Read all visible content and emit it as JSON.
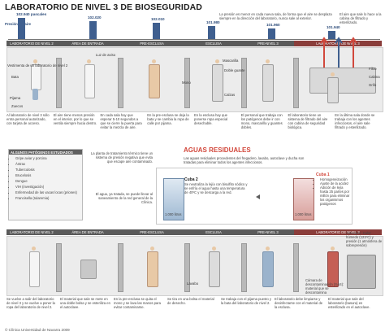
{
  "title": "LABORATORIO DE NIVEL 3 DE BIOSEGURIDAD",
  "pressure": {
    "label": "Presión del aire",
    "values": [
      "102.940 pascales",
      "102.020",
      "102.010",
      "101.980",
      "101.960",
      "101.940"
    ],
    "levels": [
      1.0,
      0.85,
      0.75,
      0.62,
      0.5,
      0.4
    ],
    "note": "La presión es menor en cada nueva sala, de forma que el aire se desplaza siempre en la dirección del laboratorio, nunca sale al exterior."
  },
  "zones_top": [
    "LABORATORIO DE NIVEL 2",
    "ÁREA DE ENTRADA",
    "PRE-ESCLUSA",
    "ESCLUSA",
    "PRE-NIVEL 3",
    "LABORATORIO DE NIVEL 3"
  ],
  "zones_bottom": [
    "LABORATORIO DE NIVEL 2",
    "ÁREA DE ENTRADA",
    "PRE-ESCLUSA",
    "ESCLUSA",
    "PRE-NIVEL 3",
    "LABORATORIO DE NIVEL 3"
  ],
  "left_labels": [
    "Vestimenta de un laboratorio de nivel 2",
    "Bata",
    "Pijama",
    "Zuecos"
  ],
  "figure_labels": [
    "Luz de aviso",
    "Mono",
    "Mascarilla",
    "Doble guante",
    "Calzas"
  ],
  "filter_labels": [
    "Filtro",
    "Cabina",
    "Grifo"
  ],
  "top_note": "El aire que sale lo hace a la cabina de filtrado y esterilizado.",
  "steps_top": [
    "Al laboratorio de nivel 3 sólo entra personal autorizado, con tarjeta de acceso.",
    "El aire tiene menos presión en el interior, por lo que se ventila siempre hacia dentro.",
    "En cada sala hay que esperar 5-10 segundos a que se cierre la puerta para evitar la mezcla de aire.",
    "En la pre-esclusa se deja la bata y se cambia la ropa de calle por pijama.",
    "En la esclusa hay que ponerse ropa especial desechable.",
    "El personal que trabaja con los patógenos debe ir con mono, mascarilla y guantes dobles.",
    "El laboratorio tiene un sistema de filtrado del aire con cabina de seguridad biológica.",
    "En la última sala donde se trabaja con los agentes infecciosos, el aire sale filtrado y esterilizado."
  ],
  "pathogens": {
    "title": "ALGUNOS PATÓGENOS ESTUDIADOS",
    "items": [
      "Gripe aviar y porcina",
      "Ántrax",
      "Tuberculosis",
      "Brucelosis",
      "Dengue",
      "VIH (investigación)",
      "Enfermedad de las vacas locas (priones)",
      "Francisella (tularemia)"
    ]
  },
  "aguas": {
    "title": "AGUAS RESIDUALES",
    "intro": "Las aguas residuales procedentes del fregadero, lavabo, autoclave y ducha son tratadas para eliminar todos los agentes infecciosos.",
    "plant_note": "La planta de tratamiento térmico tiene un sistema de presión negativa que evita que escape aire contaminado.",
    "left_note": "El agua, ya tratada, se puede llevar al saneamiento de la red general de la Clínica.",
    "cuba2": {
      "title": "Cuba 2",
      "text": "Se neutraliza la lejía con bisulfito sódico y se enfría el agua hasta una temperatura de 40ºC y se descarga a la red."
    },
    "cuba1": {
      "title": "Cuba 1",
      "items": [
        "Homogeneización",
        "Ajuste de la acidez",
        "Adición de lejía hasta 25 partes por millón para eliminar los organismos patógenos"
      ]
    },
    "tank_volume": "1.000 litros"
  },
  "steps_bottom": [
    "Se vuelve a salir del laboratorio de nivel 3 y se vuelve a poner la ropa del laboratorio de nivel 2.",
    "El material que sale se mete en una doble bolsa y se esteriliza en el autoclave.",
    "En la pre-esclusa se quita el mono y se lava las manos para evitar contaminarse.",
    "Se tira en una bolsa el material de desecho.",
    "Se trabaja con el pijama puesto y la bata del laboratorio de nivel 2.",
    "El laboratorio debe limpiarse y desinfectarse con el material de la esclusa.",
    "El material que sale del laboratorio (basura) es esterilizado en el autoclave."
  ],
  "bottom_labels": [
    "Lavabo",
    "Autoclave: Calor húmedo (121ºC) y presión (1 atmósfera de sobrepresión)",
    "Cámara de descontaminación (SAS): material que se descontamina"
  ],
  "copyright": "© Clínica Universidad de Navarra 2009",
  "colors": {
    "accent": "#d2483c",
    "dark": "#5a5a5a",
    "blue": "#3f5f8f",
    "skin": "#e8c9a6"
  }
}
